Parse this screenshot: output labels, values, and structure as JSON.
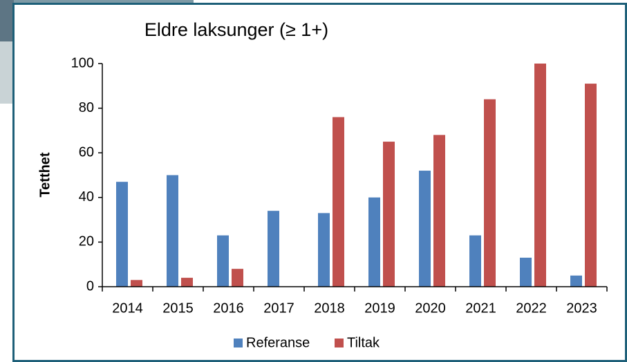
{
  "chart_data": {
    "type": "bar",
    "title": "Eldre laksunger (≥ 1+)",
    "y_label": "Tetthet",
    "categories": [
      "2014",
      "2015",
      "2016",
      "2017",
      "2018",
      "2019",
      "2020",
      "2021",
      "2022",
      "2023"
    ],
    "series": [
      {
        "name": "Referanse",
        "color": "#4f81bd",
        "values": [
          47,
          50,
          23,
          34,
          33,
          40,
          52,
          23,
          13,
          5
        ]
      },
      {
        "name": "Tiltak",
        "color": "#c0504d",
        "values": [
          3,
          4,
          8,
          null,
          76,
          65,
          68,
          84,
          100,
          91
        ]
      }
    ],
    "ylim": [
      0,
      100
    ],
    "yticks": [
      0,
      20,
      40,
      60,
      80,
      100
    ],
    "legend": "bottom"
  }
}
